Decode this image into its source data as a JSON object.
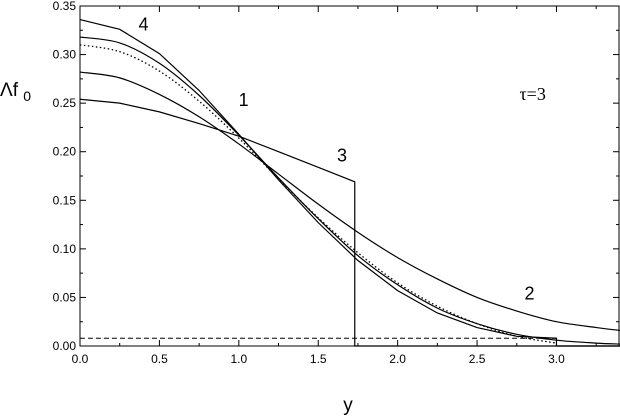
{
  "chart_data": {
    "type": "line",
    "title": "",
    "xlabel": "y",
    "ylabel_main": "Λf",
    "ylabel_sub": "0",
    "xlim": [
      0,
      3.4
    ],
    "ylim": [
      0,
      0.35
    ],
    "x_ticks": [
      0,
      0.5,
      1.0,
      1.5,
      2.0,
      2.5,
      3.0
    ],
    "x_tick_labels": [
      "0.0",
      "0.5",
      "1.0",
      "1.5",
      "2.0",
      "2.5",
      "3.0"
    ],
    "y_ticks": [
      0,
      0.05,
      0.1,
      0.15,
      0.2,
      0.25,
      0.3,
      0.35
    ],
    "y_tick_labels": [
      "0.00",
      "0.05",
      "0.10",
      "0.15",
      "0.20",
      "0.25",
      "0.30",
      "0.35"
    ],
    "grid": false,
    "legend": "none",
    "annotation": "τ=3",
    "series": [
      {
        "label": "1",
        "style": "solid",
        "x": [
          0,
          0.25,
          0.5,
          0.75,
          1.0,
          1.25,
          1.5,
          1.75,
          2.0,
          2.25,
          2.5,
          2.75,
          3.0,
          3.25,
          3.4
        ],
        "y": [
          0.318,
          0.312,
          0.291,
          0.258,
          0.217,
          0.173,
          0.131,
          0.093,
          0.063,
          0.039,
          0.023,
          0.012,
          0.006,
          0.003,
          0.002
        ]
      },
      {
        "label": "2",
        "style": "solid",
        "x": [
          0,
          0.25,
          0.5,
          0.75,
          1.0,
          1.25,
          1.5,
          1.75,
          2.0,
          2.25,
          2.5,
          2.75,
          3.0,
          3.25,
          3.4
        ],
        "y": [
          0.282,
          0.276,
          0.259,
          0.236,
          0.208,
          0.177,
          0.146,
          0.117,
          0.091,
          0.069,
          0.05,
          0.036,
          0.025,
          0.019,
          0.016
        ]
      },
      {
        "label": "3",
        "style": "solid",
        "x": [
          0,
          0.25,
          0.5,
          0.75,
          1.0,
          1.25,
          1.5,
          1.73,
          1.73,
          3.4
        ],
        "y": [
          0.254,
          0.25,
          0.241,
          0.229,
          0.216,
          0.2,
          0.184,
          0.169,
          0.0,
          0.0
        ]
      },
      {
        "label": "4",
        "style": "solid",
        "x": [
          0,
          0.25,
          0.5,
          0.75,
          1.0,
          1.25,
          1.5,
          1.75,
          2.0,
          2.25,
          2.5,
          2.75,
          3.0,
          3.0,
          3.4
        ],
        "y": [
          0.336,
          0.326,
          0.301,
          0.263,
          0.218,
          0.171,
          0.127,
          0.088,
          0.057,
          0.034,
          0.019,
          0.01,
          0.008,
          0.0,
          0.0
        ]
      },
      {
        "label": "",
        "style": "dotted",
        "x": [
          0,
          0.25,
          0.5,
          0.75,
          1.0,
          1.25,
          1.5,
          1.75,
          2.0,
          2.25,
          2.5,
          2.75,
          3.0
        ],
        "y": [
          0.31,
          0.303,
          0.283,
          0.252,
          0.214,
          0.172,
          0.132,
          0.096,
          0.065,
          0.041,
          0.023,
          0.01,
          0.003
        ]
      },
      {
        "label": "",
        "style": "dashed",
        "x": [
          0,
          3.0
        ],
        "y": [
          0.008,
          0.008
        ]
      }
    ],
    "curve_label_positions": [
      {
        "text": "1",
        "x": 1.03,
        "y": 0.247
      },
      {
        "text": "2",
        "x": 2.83,
        "y": 0.048
      },
      {
        "text": "3",
        "x": 1.65,
        "y": 0.19
      },
      {
        "text": "4",
        "x": 0.4,
        "y": 0.325
      }
    ],
    "annotation_position": {
      "x": 2.85,
      "y": 0.253
    }
  }
}
